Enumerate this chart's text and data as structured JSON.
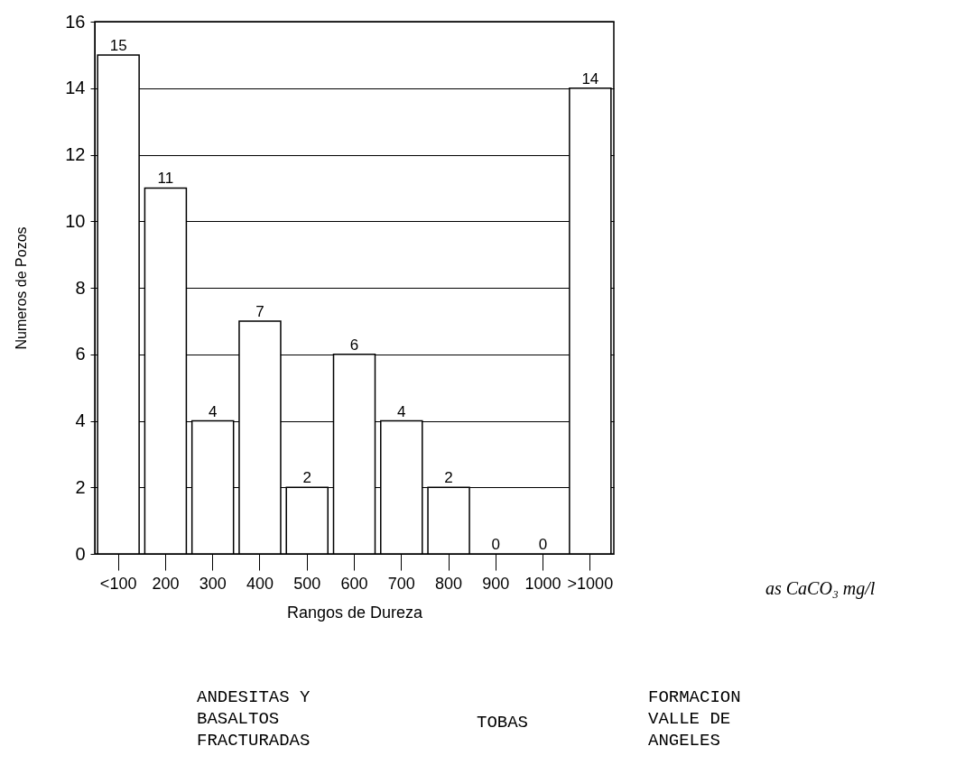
{
  "chart_data": {
    "type": "bar",
    "xlabel": "Rangos de Dureza",
    "ylabel": "Numeros de Pozos",
    "categories": [
      "<100",
      "200",
      "300",
      "400",
      "500",
      "600",
      "700",
      "800",
      "900",
      "1000",
      ">1000"
    ],
    "values": [
      15,
      11,
      4,
      7,
      2,
      6,
      4,
      2,
      0,
      0,
      14
    ],
    "color": "#ffffff",
    "ylim": [
      0,
      16
    ],
    "yticks": [
      0,
      2,
      4,
      6,
      8,
      10,
      12,
      14,
      16
    ],
    "grid": "y",
    "data_labels": true,
    "annotations": [
      "as CaCO₃ mg/l",
      "ANDESITAS Y BASALTOS FRACTURADAS",
      "TOBAS",
      "FORMACION VALLE DE ANGELES"
    ]
  }
}
